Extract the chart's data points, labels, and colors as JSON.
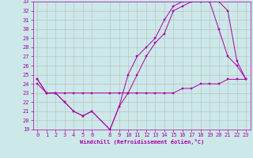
{
  "xlabel": "Windchill (Refroidissement éolien,°C)",
  "bg_color": "#cce8e8",
  "line_color": "#aa00aa",
  "grid_color": "#bbbbbb",
  "xlim": [
    -0.5,
    23.5
  ],
  "ylim": [
    19,
    33
  ],
  "xticks": [
    0,
    1,
    2,
    3,
    4,
    5,
    6,
    8,
    9,
    10,
    11,
    12,
    13,
    14,
    15,
    16,
    17,
    18,
    19,
    20,
    21,
    22,
    23
  ],
  "yticks": [
    19,
    20,
    21,
    22,
    23,
    24,
    25,
    26,
    27,
    28,
    29,
    30,
    31,
    32,
    33
  ],
  "series1_x": [
    0,
    1,
    2,
    3,
    4,
    5,
    6,
    8,
    9,
    10,
    11,
    12,
    13,
    14,
    15,
    16,
    17,
    18,
    19,
    20,
    21,
    22,
    23
  ],
  "series1_y": [
    24.0,
    23.0,
    23.0,
    23.0,
    23.0,
    23.0,
    23.0,
    23.0,
    23.0,
    23.0,
    23.0,
    23.0,
    23.0,
    23.0,
    23.0,
    23.5,
    23.5,
    24.0,
    24.0,
    24.0,
    24.5,
    24.5,
    24.5
  ],
  "series2_x": [
    0,
    1,
    2,
    3,
    4,
    5,
    6,
    8,
    9,
    10,
    11,
    12,
    13,
    14,
    15,
    16,
    17,
    18,
    19,
    20,
    21,
    22,
    23
  ],
  "series2_y": [
    24.5,
    23.0,
    23.0,
    22.0,
    21.0,
    20.5,
    21.0,
    19.0,
    21.5,
    23.0,
    25.0,
    27.0,
    28.5,
    29.5,
    32.0,
    32.5,
    33.0,
    33.0,
    33.0,
    30.0,
    27.0,
    26.0,
    24.5
  ],
  "series3_x": [
    0,
    1,
    2,
    3,
    4,
    5,
    6,
    8,
    9,
    10,
    11,
    12,
    13,
    14,
    15,
    16,
    17,
    18,
    19,
    20,
    21,
    22,
    23
  ],
  "series3_y": [
    24.5,
    23.0,
    23.0,
    22.0,
    21.0,
    20.5,
    21.0,
    19.0,
    21.5,
    25.0,
    27.0,
    28.0,
    29.0,
    31.0,
    32.5,
    33.0,
    33.0,
    33.0,
    33.0,
    33.0,
    32.0,
    26.5,
    24.5
  ],
  "xlabel_fontsize": 5,
  "tick_fontsize": 5
}
